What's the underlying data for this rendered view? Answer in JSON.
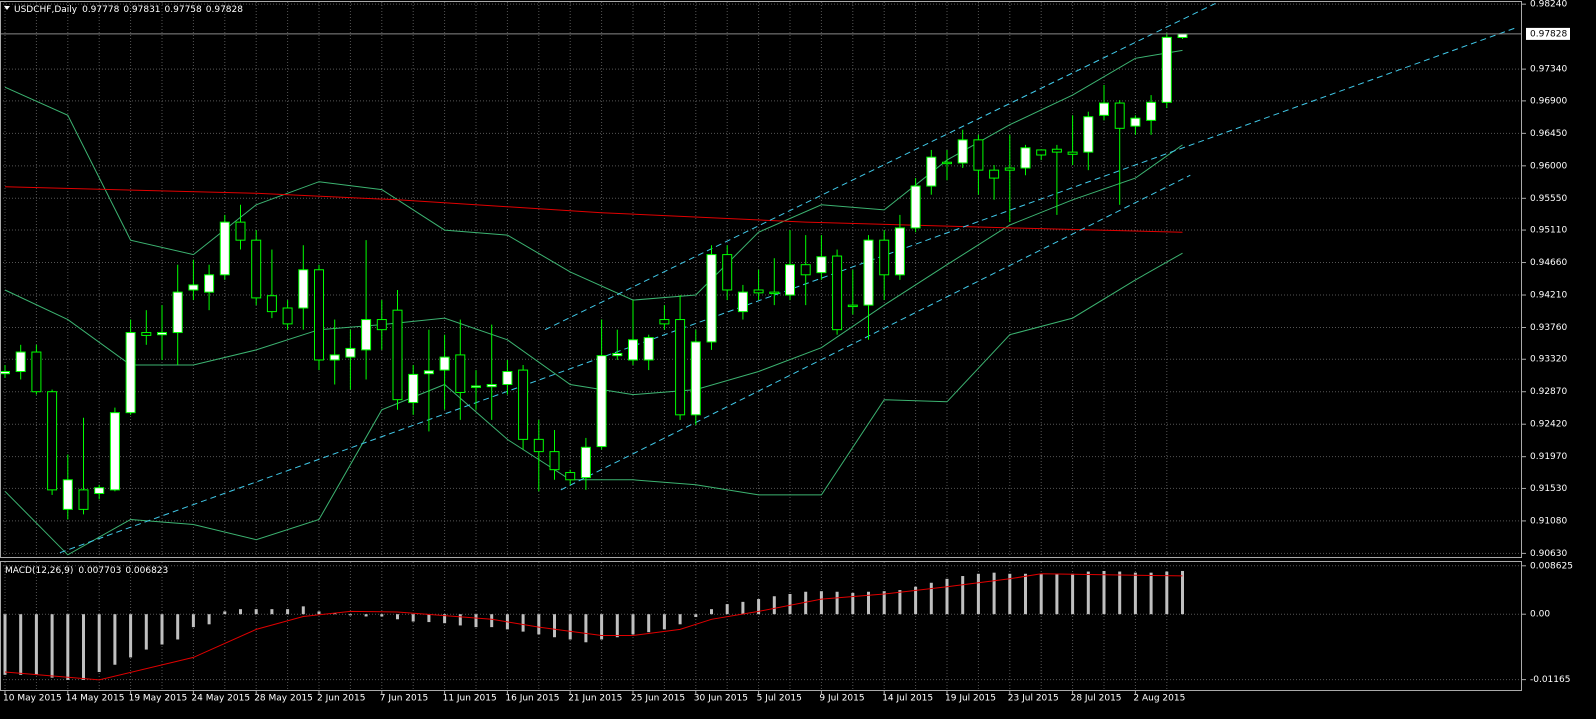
{
  "chart_data": [
    {
      "type": "candlestick",
      "title": "USDCHF,Daily",
      "categories": [
        "10 May 2015",
        null,
        null,
        null,
        "14 May 2015",
        null,
        null,
        null,
        "19 May 2015",
        null,
        null,
        null,
        "24 May 2015",
        null,
        null,
        null,
        "28 May 2015",
        null,
        null,
        null,
        "2 Jun 2015",
        null,
        null,
        null,
        "7 Jun 2015",
        null,
        null,
        null,
        "11 Jun 2015",
        null,
        null,
        null,
        "16 Jun 2015",
        null,
        null,
        null,
        "21 Jun 2015",
        null,
        null,
        null,
        "25 Jun 2015",
        null,
        null,
        null,
        "30 Jun 2015",
        null,
        null,
        null,
        "5 Jul 2015",
        null,
        null,
        null,
        "9 Jul 2015",
        null,
        null,
        null,
        "14 Jul 2015",
        null,
        null,
        null,
        "19 Jul 2015",
        null,
        null,
        null,
        "23 Jul 2015",
        null,
        null,
        null,
        "28 Jul 2015",
        null,
        null,
        null,
        "2 Aug 2015",
        null,
        null,
        null
      ],
      "open": [
        0.9312,
        0.9315,
        0.9342,
        0.9287,
        0.9124,
        0.9151,
        0.9146,
        0.9151,
        0.9258,
        0.9369,
        0.9366,
        0.9369,
        0.9428,
        0.9425,
        0.9449,
        0.9522,
        0.9497,
        0.942,
        0.9403,
        0.9403,
        0.9456,
        0.9331,
        0.9335,
        0.9345,
        0.9387,
        0.94,
        0.9272,
        0.9312,
        0.9317,
        0.9338,
        0.9293,
        0.9294,
        0.9297,
        0.9317,
        0.9221,
        0.9204,
        0.9175,
        0.9168,
        0.9211,
        0.9337,
        0.9331,
        0.9331,
        0.9387,
        0.9387,
        0.9255,
        0.9356,
        0.9477,
        0.9398,
        0.9428,
        0.9425,
        0.9421,
        0.9463,
        0.9452,
        0.9475,
        0.9407,
        0.9407,
        0.9497,
        0.9449,
        0.9514,
        0.9572,
        0.9605,
        0.9604,
        0.9636,
        0.9594,
        0.9597,
        0.9597,
        0.9622,
        0.9623,
        0.9619,
        0.9619,
        0.967,
        0.9687,
        0.9655,
        0.9663,
        0.9688,
        0.97778
      ],
      "high": [
        0.9324,
        0.9352,
        0.9352,
        0.929,
        0.92,
        0.9251,
        0.9158,
        0.9265,
        0.9387,
        0.94,
        0.9407,
        0.9463,
        0.947,
        0.9463,
        0.9532,
        0.9546,
        0.9511,
        0.9484,
        0.9414,
        0.949,
        0.9463,
        0.9387,
        0.9373,
        0.9497,
        0.9414,
        0.9428,
        0.9324,
        0.9373,
        0.9366,
        0.9387,
        0.9317,
        0.938,
        0.9331,
        0.9324,
        0.9248,
        0.9234,
        0.9179,
        0.9223,
        0.9387,
        0.9373,
        0.9414,
        0.9366,
        0.9407,
        0.9421,
        0.9373,
        0.949,
        0.949,
        0.9435,
        0.9456,
        0.9472,
        0.9511,
        0.9504,
        0.9504,
        0.9484,
        0.9456,
        0.9504,
        0.9511,
        0.9532,
        0.9583,
        0.9622,
        0.9622,
        0.965,
        0.9643,
        0.9601,
        0.9643,
        0.9629,
        0.9622,
        0.9629,
        0.967,
        0.9675,
        0.9712,
        0.9691,
        0.967,
        0.9698,
        0.9784,
        0.97831
      ],
      "low": [
        0.9306,
        0.9304,
        0.9283,
        0.9144,
        0.911,
        0.9117,
        0.9138,
        0.9149,
        0.9255,
        0.9352,
        0.9331,
        0.9324,
        0.9414,
        0.94,
        0.9442,
        0.9484,
        0.9407,
        0.9389,
        0.9373,
        0.9373,
        0.9317,
        0.9297,
        0.929,
        0.9304,
        0.9345,
        0.9262,
        0.9255,
        0.9232,
        0.9262,
        0.9248,
        0.9262,
        0.9248,
        0.9283,
        0.9207,
        0.9149,
        0.9165,
        0.9158,
        0.9151,
        0.9207,
        0.9331,
        0.9324,
        0.9317,
        0.9373,
        0.9248,
        0.9241,
        0.9345,
        0.9414,
        0.9387,
        0.9414,
        0.9407,
        0.9414,
        0.9407,
        0.9442,
        0.9366,
        0.9394,
        0.9359,
        0.9414,
        0.9442,
        0.9508,
        0.956,
        0.958,
        0.9597,
        0.956,
        0.9553,
        0.9522,
        0.9587,
        0.9608,
        0.9532,
        0.9601,
        0.9594,
        0.9663,
        0.9546,
        0.9643,
        0.9643,
        0.968,
        0.97758
      ],
      "close": [
        0.9315,
        0.9342,
        0.9287,
        0.9151,
        0.9165,
        0.9124,
        0.9154,
        0.9258,
        0.9369,
        0.9365,
        0.9369,
        0.9425,
        0.9435,
        0.9449,
        0.9522,
        0.9497,
        0.9417,
        0.9398,
        0.9381,
        0.9456,
        0.9331,
        0.9338,
        0.9347,
        0.9387,
        0.9373,
        0.9276,
        0.9311,
        0.9316,
        0.9335,
        0.9286,
        0.9295,
        0.9297,
        0.9315,
        0.9221,
        0.9204,
        0.9179,
        0.9165,
        0.921,
        0.9337,
        0.934,
        0.9359,
        0.9362,
        0.9381,
        0.9255,
        0.9356,
        0.9477,
        0.9428,
        0.9425,
        0.9424,
        0.9423,
        0.9463,
        0.9449,
        0.9474,
        0.9373,
        0.9405,
        0.9497,
        0.9449,
        0.9514,
        0.9572,
        0.9612,
        0.9603,
        0.9636,
        0.9594,
        0.9583,
        0.9594,
        0.9625,
        0.9615,
        0.9619,
        0.9616,
        0.9668,
        0.9687,
        0.9652,
        0.9666,
        0.9688,
        0.9778,
        0.97828
      ],
      "up_color": "#ffffff",
      "down_color": "#000000",
      "wick_color": "#00ff00",
      "bands": {
        "x": [
          0,
          4,
          8,
          12,
          16,
          20,
          24,
          28,
          32,
          36,
          40,
          44,
          48,
          52,
          56,
          60,
          64,
          68,
          72,
          75
        ],
        "upper": [
          0.9709,
          0.967,
          0.9497,
          0.9477,
          0.9546,
          0.9578,
          0.9567,
          0.9511,
          0.9504,
          0.9453,
          0.9414,
          0.9421,
          0.9508,
          0.9546,
          0.9539,
          0.9608,
          0.9657,
          0.9698,
          0.9749,
          0.976
        ],
        "middle": [
          0.9428,
          0.9387,
          0.9324,
          0.9324,
          0.9345,
          0.9373,
          0.938,
          0.9389,
          0.9359,
          0.9297,
          0.9283,
          0.929,
          0.9315,
          0.9348,
          0.9407,
          0.9463,
          0.9518,
          0.9553,
          0.9583,
          0.9629
        ],
        "lower": [
          0.9149,
          0.9061,
          0.911,
          0.9103,
          0.9082,
          0.911,
          0.9262,
          0.9297,
          0.9221,
          0.9165,
          0.9165,
          0.9158,
          0.9144,
          0.9144,
          0.9276,
          0.9273,
          0.9366,
          0.9389,
          0.9442,
          0.9479
        ],
        "color": "#3cb371"
      },
      "ma": {
        "x": [
          0,
          16,
          25,
          38,
          51,
          64,
          75
        ],
        "values": [
          0.9571,
          0.9562,
          0.9553,
          0.9535,
          0.9522,
          0.9514,
          0.9508
        ],
        "color": "#e00000"
      },
      "trendlines": [
        {
          "x": [
            3.5,
            96.2
          ],
          "values": [
            0.9064,
            0.9791
          ]
        },
        {
          "x": [
            34.4,
            77.1
          ],
          "values": [
            0.9373,
            0.9825
          ]
        },
        {
          "x": [
            35.4,
            75.5
          ],
          "values": [
            0.9151,
            0.9587
          ]
        }
      ],
      "trendline_color": "#40c8e8",
      "ylim": [
        0.9058,
        0.9827
      ],
      "yticks": [
        {
          "value": 0.9824,
          "label": "0.98240"
        },
        {
          "value": 0.9734,
          "label": "0.97340"
        },
        {
          "value": 0.969,
          "label": "0.96900"
        },
        {
          "value": 0.9645,
          "label": "0.96450"
        },
        {
          "value": 0.96,
          "label": "0.96000"
        },
        {
          "value": 0.9555,
          "label": "0.95550"
        },
        {
          "value": 0.9511,
          "label": "0.95110"
        },
        {
          "value": 0.9466,
          "label": "0.94660"
        },
        {
          "value": 0.9421,
          "label": "0.94210"
        },
        {
          "value": 0.9376,
          "label": "0.93760"
        },
        {
          "value": 0.9332,
          "label": "0.93320"
        },
        {
          "value": 0.9287,
          "label": "0.92870"
        },
        {
          "value": 0.9242,
          "label": "0.92420"
        },
        {
          "value": 0.9197,
          "label": "0.91970"
        },
        {
          "value": 0.9153,
          "label": "0.91530"
        },
        {
          "value": 0.9108,
          "label": "0.91080"
        },
        {
          "value": 0.9063,
          "label": "0.90630"
        }
      ],
      "grid": true
    },
    {
      "type": "macd",
      "title": "MACD(12,26,9)",
      "values": [
        -0.0108,
        -0.0108,
        -0.0108,
        -0.0113,
        -0.0117,
        -0.0117,
        -0.0103,
        -0.009,
        -0.0077,
        -0.0063,
        -0.0054,
        -0.0045,
        -0.0023,
        -0.0018,
        0.0005,
        0.0009,
        0.0009,
        0.0009,
        0.0009,
        0.0014,
        0.0005,
        0.0002,
        -0.0002,
        -0.0004,
        -0.0004,
        -0.0009,
        -0.0013,
        -0.0014,
        -0.0016,
        -0.002,
        -0.0023,
        -0.0023,
        -0.0027,
        -0.0031,
        -0.0036,
        -0.0041,
        -0.0045,
        -0.005,
        -0.0045,
        -0.0041,
        -0.0036,
        -0.0032,
        -0.0027,
        -0.0018,
        -0.0005,
        0.0009,
        0.0018,
        0.0022,
        0.0027,
        0.0032,
        0.0036,
        0.004,
        0.0041,
        0.004,
        0.0038,
        0.004,
        0.0041,
        0.0043,
        0.0049,
        0.0056,
        0.0063,
        0.0068,
        0.0072,
        0.0074,
        0.0072,
        0.0072,
        0.0072,
        0.0072,
        0.0072,
        0.0076,
        0.0077,
        0.0076,
        0.0074,
        0.0074,
        0.0076,
        0.007703
      ],
      "color": "#c0c0c0",
      "signal": {
        "x": [
          0,
          6,
          12,
          16,
          19,
          22,
          25,
          31,
          34,
          38,
          40,
          43,
          45,
          48,
          52,
          56,
          60,
          64,
          66,
          75
        ],
        "values": [
          -0.0103,
          -0.0117,
          -0.0077,
          -0.0027,
          -0.0004,
          0.0005,
          0.0004,
          -0.0009,
          -0.0023,
          -0.0038,
          -0.0038,
          -0.0027,
          -0.0009,
          0.0005,
          0.0027,
          0.0036,
          0.0049,
          0.0063,
          0.0072,
          0.006823
        ],
        "color": "#e00000"
      },
      "ylim": [
        -0.0135,
        0.0093
      ],
      "yticks": [
        0.008625,
        {
          "value": 0,
          "label": "0.00"
        },
        -0.01165
      ]
    }
  ]
}
